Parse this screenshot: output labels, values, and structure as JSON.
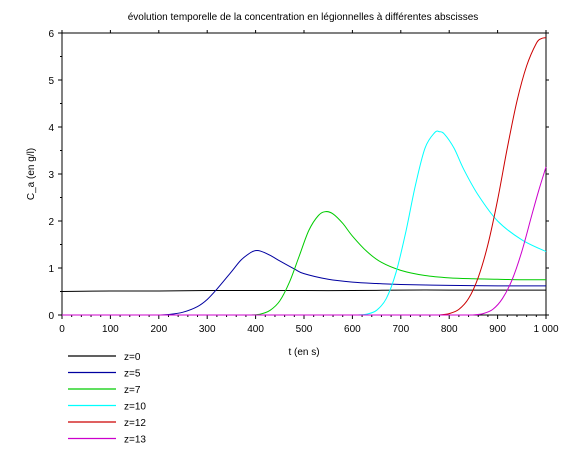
{
  "chart_data": {
    "type": "line",
    "title": "évolution temporelle de la concentration en légionnelles à différentes abscisses",
    "xlabel": "t (en s)",
    "ylabel": "C_a (en g/l)",
    "xlim": [
      0,
      1000
    ],
    "ylim": [
      0,
      6
    ],
    "x_ticks": [
      0,
      100,
      200,
      300,
      400,
      500,
      600,
      700,
      800,
      900,
      1000
    ],
    "x_tick_labels": [
      "0",
      "100",
      "200",
      "300",
      "400",
      "500",
      "600",
      "700",
      "800",
      "900",
      "1 000"
    ],
    "y_ticks": [
      0,
      1,
      2,
      3,
      4,
      5,
      6
    ],
    "y_tick_labels": [
      "0",
      "1",
      "2",
      "3",
      "4",
      "5",
      "6"
    ],
    "grid": false,
    "legend_position": "bottom-left",
    "series": [
      {
        "name": "z=0",
        "color": "#000000",
        "x": [
          0,
          100,
          200,
          300,
          400,
          500,
          600,
          700,
          800,
          900,
          1000
        ],
        "y": [
          0.5,
          0.51,
          0.51,
          0.52,
          0.52,
          0.52,
          0.52,
          0.53,
          0.53,
          0.53,
          0.53
        ]
      },
      {
        "name": "z=5",
        "color": "#0000a0",
        "x": [
          200,
          220,
          250,
          280,
          300,
          320,
          350,
          370,
          390,
          400,
          410,
          430,
          450,
          480,
          500,
          550,
          600,
          650,
          700,
          800,
          900,
          1000
        ],
        "y": [
          0,
          0.01,
          0.06,
          0.18,
          0.33,
          0.55,
          0.92,
          1.17,
          1.33,
          1.37,
          1.36,
          1.27,
          1.15,
          0.98,
          0.88,
          0.76,
          0.7,
          0.67,
          0.65,
          0.63,
          0.62,
          0.62
        ]
      },
      {
        "name": "z=7",
        "color": "#00cc00",
        "x": [
          390,
          410,
          430,
          450,
          470,
          490,
          510,
          530,
          545,
          560,
          580,
          600,
          630,
          660,
          700,
          750,
          800,
          850,
          900,
          950,
          1000
        ],
        "y": [
          0,
          0.02,
          0.1,
          0.3,
          0.7,
          1.25,
          1.8,
          2.12,
          2.2,
          2.15,
          1.95,
          1.68,
          1.35,
          1.12,
          0.95,
          0.84,
          0.79,
          0.77,
          0.76,
          0.75,
          0.75
        ]
      },
      {
        "name": "z=10",
        "color": "#00ffff",
        "x": [
          610,
          630,
          650,
          670,
          690,
          710,
          730,
          750,
          770,
          780,
          790,
          810,
          830,
          860,
          900,
          950,
          1000
        ],
        "y": [
          0,
          0.02,
          0.1,
          0.35,
          0.9,
          1.75,
          2.75,
          3.55,
          3.88,
          3.9,
          3.85,
          3.55,
          3.1,
          2.55,
          2.0,
          1.6,
          1.35
        ]
      },
      {
        "name": "z=12",
        "color": "#cc0000",
        "x": [
          780,
          800,
          820,
          840,
          860,
          880,
          900,
          920,
          940,
          960,
          980,
          990,
          1000
        ],
        "y": [
          0,
          0.03,
          0.12,
          0.35,
          0.8,
          1.5,
          2.45,
          3.55,
          4.55,
          5.3,
          5.78,
          5.88,
          5.9
        ]
      },
      {
        "name": "z=13",
        "color": "#cc00cc",
        "x": [
          850,
          870,
          890,
          910,
          930,
          950,
          970,
          985,
          1000
        ],
        "y": [
          0,
          0.03,
          0.12,
          0.35,
          0.75,
          1.35,
          2.1,
          2.65,
          3.15
        ]
      }
    ]
  }
}
